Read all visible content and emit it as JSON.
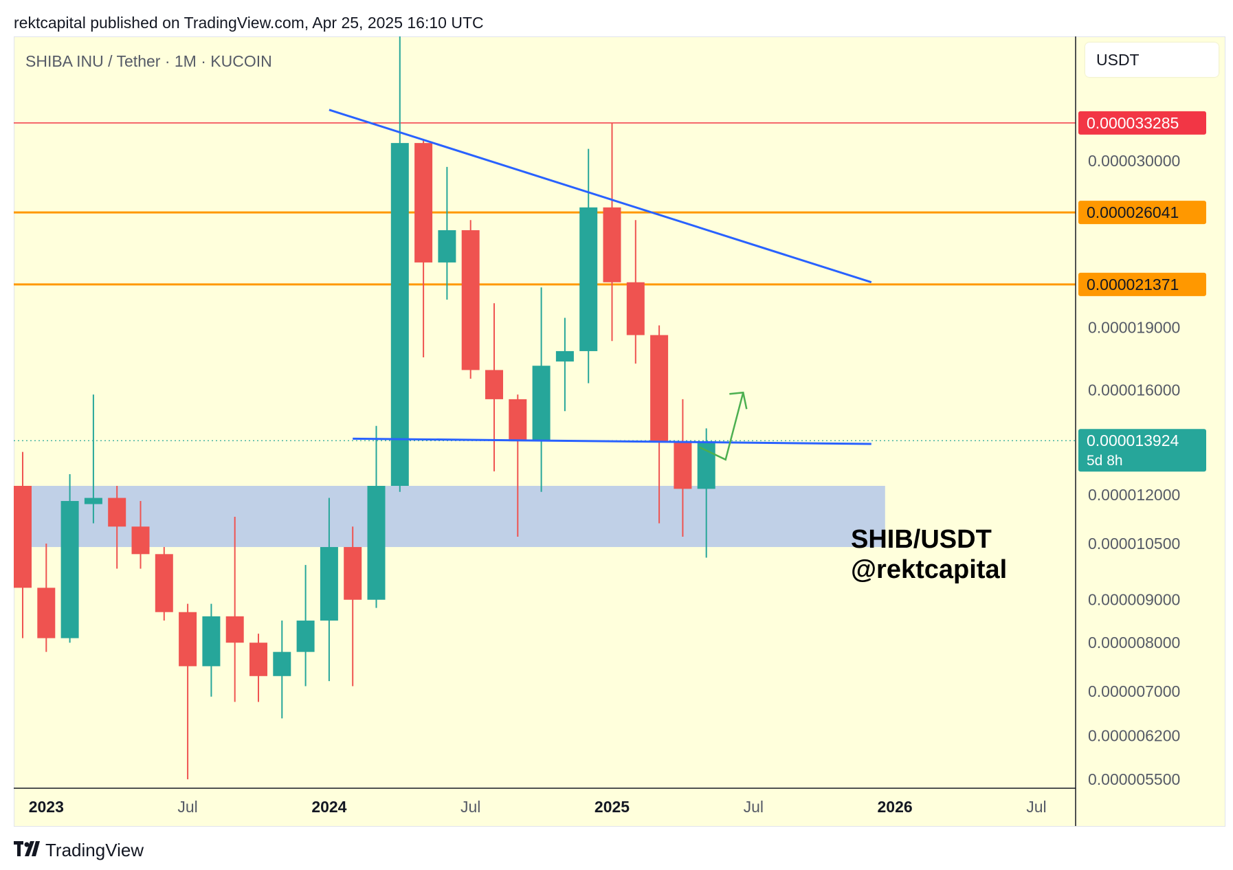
{
  "header": {
    "published_line": "rektcapital published on TradingView.com, Apr 25, 2025 16:10 UTC"
  },
  "chart_header": {
    "symbol_title": "SHIBA INU / Tether · 1M · KUCOIN",
    "currency": "USDT"
  },
  "watermark": {
    "line1": "SHIB/USDT",
    "line2": "@rektcapital"
  },
  "footer": {
    "brand": "TradingView",
    "logo_icon": "tradingview-logo-icon"
  },
  "colors": {
    "background": "#ffffdc",
    "up": "#26a69a",
    "down": "#ef5350",
    "red_level": "#f23645",
    "orange_level": "#ff9800",
    "trendline": "#2962ff",
    "zone": "#b9cbe8",
    "arrow": "#4caf50"
  },
  "chart_data": {
    "type": "candlestick",
    "title": "SHIBA INU / Tether · 1M · KUCOIN",
    "y_scale": "log",
    "ylim": [
      5.2e-06,
      4.9e-05
    ],
    "x_tick_labels": [
      "2023",
      "Jul",
      "2024",
      "Jul",
      "2025",
      "Jul",
      "2026",
      "Jul"
    ],
    "x_tick_months": [
      "2023-01",
      "2023-07",
      "2024-01",
      "2024-07",
      "2025-01",
      "2025-07",
      "2026-01",
      "2026-07"
    ],
    "y_tick_labels": [
      "0.000030000",
      "0.000019000",
      "0.000016000",
      "0.000012000",
      "0.000010500",
      "0.000009000",
      "0.000008000",
      "0.000007000",
      "0.000006200",
      "0.000005500"
    ],
    "y_tick_values": [
      3e-05,
      1.9e-05,
      1.6e-05,
      1.2e-05,
      1.05e-05,
      9e-06,
      8e-06,
      7e-06,
      6.2e-06,
      5.5e-06
    ],
    "price_labels": [
      {
        "value": 3.3285e-05,
        "text": "0.000033285",
        "color": "#f23645"
      },
      {
        "value": 2.6041e-05,
        "text": "0.000026041",
        "color": "#ff9800"
      },
      {
        "value": 2.1371e-05,
        "text": "0.000021371",
        "color": "#ff9800"
      }
    ],
    "current_price": {
      "value": 1.3924e-05,
      "text": "0.000013924",
      "countdown": "5d 8h",
      "color": "#26a69a"
    },
    "horizontal_levels": [
      {
        "value": 3.3285e-05,
        "color": "#f23645",
        "style": "thin"
      },
      {
        "value": 2.6041e-05,
        "color": "#ff9800",
        "style": "thick"
      },
      {
        "value": 2.1371e-05,
        "color": "#ff9800",
        "style": "thick"
      }
    ],
    "zone": {
      "from_month": "2022-12",
      "to_month": "2025-12",
      "top": 1.23e-05,
      "bottom": 1.04e-05
    },
    "trendlines": [
      {
        "name": "descending",
        "from": {
          "month": "2024-01",
          "value": 3.45e-05
        },
        "to": {
          "month": "2025-12",
          "value": 2.15e-05
        }
      },
      {
        "name": "support",
        "from": {
          "month": "2024-02",
          "value": 1.4e-05
        },
        "to": {
          "month": "2025-12",
          "value": 1.38e-05
        }
      }
    ],
    "arrow": {
      "from": {
        "month": "2025-05",
        "value": 1.42e-05
      },
      "to": {
        "month": "2025-07",
        "value": 1.53e-05
      }
    },
    "candles": [
      {
        "t": "2022-12",
        "o": 1.23e-05,
        "h": 1.35e-05,
        "l": 8.1e-06,
        "c": 9.3e-06
      },
      {
        "t": "2023-01",
        "o": 9.3e-06,
        "h": 1.05e-05,
        "l": 7.8e-06,
        "c": 8.1e-06
      },
      {
        "t": "2023-02",
        "o": 8.1e-06,
        "h": 1.27e-05,
        "l": 8e-06,
        "c": 1.18e-05
      },
      {
        "t": "2023-03",
        "o": 1.17e-05,
        "h": 1.58e-05,
        "l": 1.11e-05,
        "c": 1.19e-05
      },
      {
        "t": "2023-04",
        "o": 1.19e-05,
        "h": 1.23e-05,
        "l": 9.8e-06,
        "c": 1.1e-05
      },
      {
        "t": "2023-05",
        "o": 1.1e-05,
        "h": 1.18e-05,
        "l": 9.8e-06,
        "c": 1.02e-05
      },
      {
        "t": "2023-06",
        "o": 1.02e-05,
        "h": 1.04e-05,
        "l": 8.5e-06,
        "c": 8.7e-06
      },
      {
        "t": "2023-07",
        "o": 8.7e-06,
        "h": 8.9e-06,
        "l": 5.5e-06,
        "c": 7.5e-06
      },
      {
        "t": "2023-08",
        "o": 7.5e-06,
        "h": 8.9e-06,
        "l": 6.9e-06,
        "c": 8.6e-06
      },
      {
        "t": "2023-09",
        "o": 8.6e-06,
        "h": 1.13e-05,
        "l": 6.8e-06,
        "c": 8e-06
      },
      {
        "t": "2023-10",
        "o": 8e-06,
        "h": 8.2e-06,
        "l": 6.8e-06,
        "c": 7.3e-06
      },
      {
        "t": "2023-11",
        "o": 7.3e-06,
        "h": 8.5e-06,
        "l": 6.5e-06,
        "c": 7.8e-06
      },
      {
        "t": "2023-12",
        "o": 7.8e-06,
        "h": 9.9e-06,
        "l": 7.1e-06,
        "c": 8.5e-06
      },
      {
        "t": "2024-01",
        "o": 8.5e-06,
        "h": 1.19e-05,
        "l": 7.2e-06,
        "c": 1.04e-05
      },
      {
        "t": "2024-02",
        "o": 1.04e-05,
        "h": 1.1e-05,
        "l": 7.1e-06,
        "c": 9e-06
      },
      {
        "t": "2024-03",
        "o": 9e-06,
        "h": 1.45e-05,
        "l": 8.8e-06,
        "c": 1.23e-05
      },
      {
        "t": "2024-04",
        "o": 1.23e-05,
        "h": 4.9e-05,
        "l": 1.21e-05,
        "c": 3.15e-05
      },
      {
        "t": "2024-05",
        "o": 3.15e-05,
        "h": 3.18e-05,
        "l": 1.75e-05,
        "c": 2.27e-05
      },
      {
        "t": "2024-06",
        "o": 2.27e-05,
        "h": 2.95e-05,
        "l": 2.05e-05,
        "c": 2.48e-05
      },
      {
        "t": "2024-07",
        "o": 2.48e-05,
        "h": 2.55e-05,
        "l": 1.65e-05,
        "c": 1.69e-05
      },
      {
        "t": "2024-08",
        "o": 1.69e-05,
        "h": 2.03e-05,
        "l": 1.28e-05,
        "c": 1.56e-05
      },
      {
        "t": "2024-09",
        "o": 1.56e-05,
        "h": 1.58e-05,
        "l": 1.07e-05,
        "c": 1.39e-05
      },
      {
        "t": "2024-10",
        "o": 1.39e-05,
        "h": 2.12e-05,
        "l": 1.21e-05,
        "c": 1.71e-05
      },
      {
        "t": "2024-11",
        "o": 1.73e-05,
        "h": 1.95e-05,
        "l": 1.51e-05,
        "c": 1.78e-05
      },
      {
        "t": "2024-12",
        "o": 1.78e-05,
        "h": 3.1e-05,
        "l": 1.63e-05,
        "c": 2.64e-05
      },
      {
        "t": "2025-01",
        "o": 2.64e-05,
        "h": 3.33e-05,
        "l": 1.83e-05,
        "c": 2.15e-05
      },
      {
        "t": "2025-02",
        "o": 2.15e-05,
        "h": 2.55e-05,
        "l": 1.72e-05,
        "c": 1.86e-05
      },
      {
        "t": "2025-03",
        "o": 1.86e-05,
        "h": 1.91e-05,
        "l": 1.11e-05,
        "c": 1.39e-05
      },
      {
        "t": "2025-04",
        "o": 1.39e-05,
        "h": 1.56e-05,
        "l": 1.07e-05,
        "c": 1.22e-05
      },
      {
        "t": "2025-05",
        "o": 1.22e-05,
        "h": 1.44e-05,
        "l": 1.01e-05,
        "c": 1.39e-05
      }
    ]
  }
}
